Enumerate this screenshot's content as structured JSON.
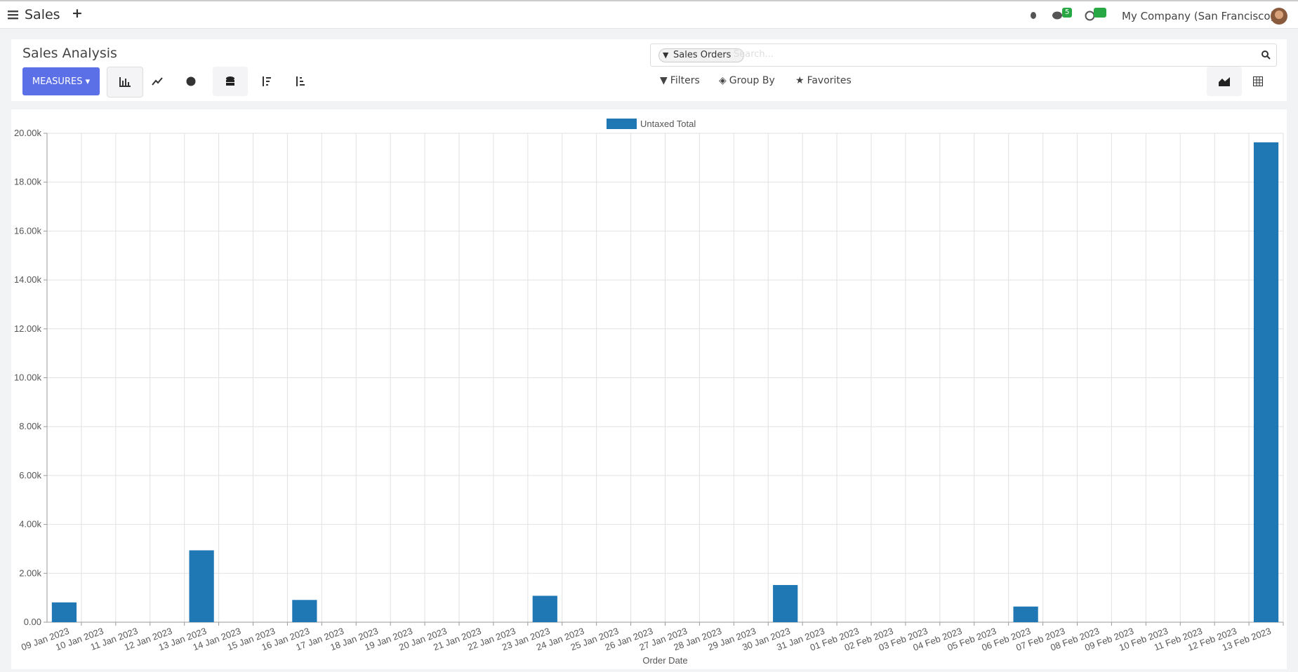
{
  "navbar": {
    "app_name": "Sales",
    "messages_count": "5",
    "company": "My Company (San Francisco)"
  },
  "control_panel": {
    "title": "Sales Analysis",
    "measures": "MEASURES",
    "facet": "Sales Orders",
    "search_placeholder": "Search...",
    "filters": "Filters",
    "group_by": "Group By",
    "favorites": "Favorites"
  },
  "chart_data": {
    "type": "bar",
    "x_label": "Order Date",
    "categories": [
      "09 Jan 2023",
      "10 Jan 2023",
      "11 Jan 2023",
      "12 Jan 2023",
      "13 Jan 2023",
      "14 Jan 2023",
      "15 Jan 2023",
      "16 Jan 2023",
      "17 Jan 2023",
      "18 Jan 2023",
      "19 Jan 2023",
      "20 Jan 2023",
      "21 Jan 2023",
      "22 Jan 2023",
      "23 Jan 2023",
      "24 Jan 2023",
      "25 Jan 2023",
      "26 Jan 2023",
      "27 Jan 2023",
      "28 Jan 2023",
      "29 Jan 2023",
      "30 Jan 2023",
      "31 Jan 2023",
      "01 Feb 2023",
      "02 Feb 2023",
      "03 Feb 2023",
      "04 Feb 2023",
      "05 Feb 2023",
      "06 Feb 2023",
      "07 Feb 2023",
      "08 Feb 2023",
      "09 Feb 2023",
      "10 Feb 2023",
      "11 Feb 2023",
      "12 Feb 2023",
      "13 Feb 2023"
    ],
    "series": [
      {
        "name": "Untaxed Total",
        "color": "#1f77b4",
        "values": [
          810,
          0,
          0,
          0,
          2940,
          0,
          0,
          910,
          0,
          0,
          0,
          0,
          0,
          0,
          1080,
          0,
          0,
          0,
          0,
          0,
          0,
          1520,
          0,
          0,
          0,
          0,
          0,
          0,
          640,
          0,
          0,
          0,
          0,
          0,
          0,
          19630
        ]
      }
    ],
    "ylim": [
      0,
      20000
    ],
    "yticks": [
      {
        "value": 0,
        "label": "0.00"
      },
      {
        "value": 2000,
        "label": "2.00k"
      },
      {
        "value": 4000,
        "label": "4.00k"
      },
      {
        "value": 6000,
        "label": "6.00k"
      },
      {
        "value": 8000,
        "label": "8.00k"
      },
      {
        "value": 10000,
        "label": "10.00k"
      },
      {
        "value": 12000,
        "label": "12.00k"
      },
      {
        "value": 14000,
        "label": "14.00k"
      },
      {
        "value": 16000,
        "label": "16.00k"
      },
      {
        "value": 18000,
        "label": "18.00k"
      },
      {
        "value": 20000,
        "label": "20.00k"
      }
    ],
    "grid": true,
    "legend": "top"
  }
}
